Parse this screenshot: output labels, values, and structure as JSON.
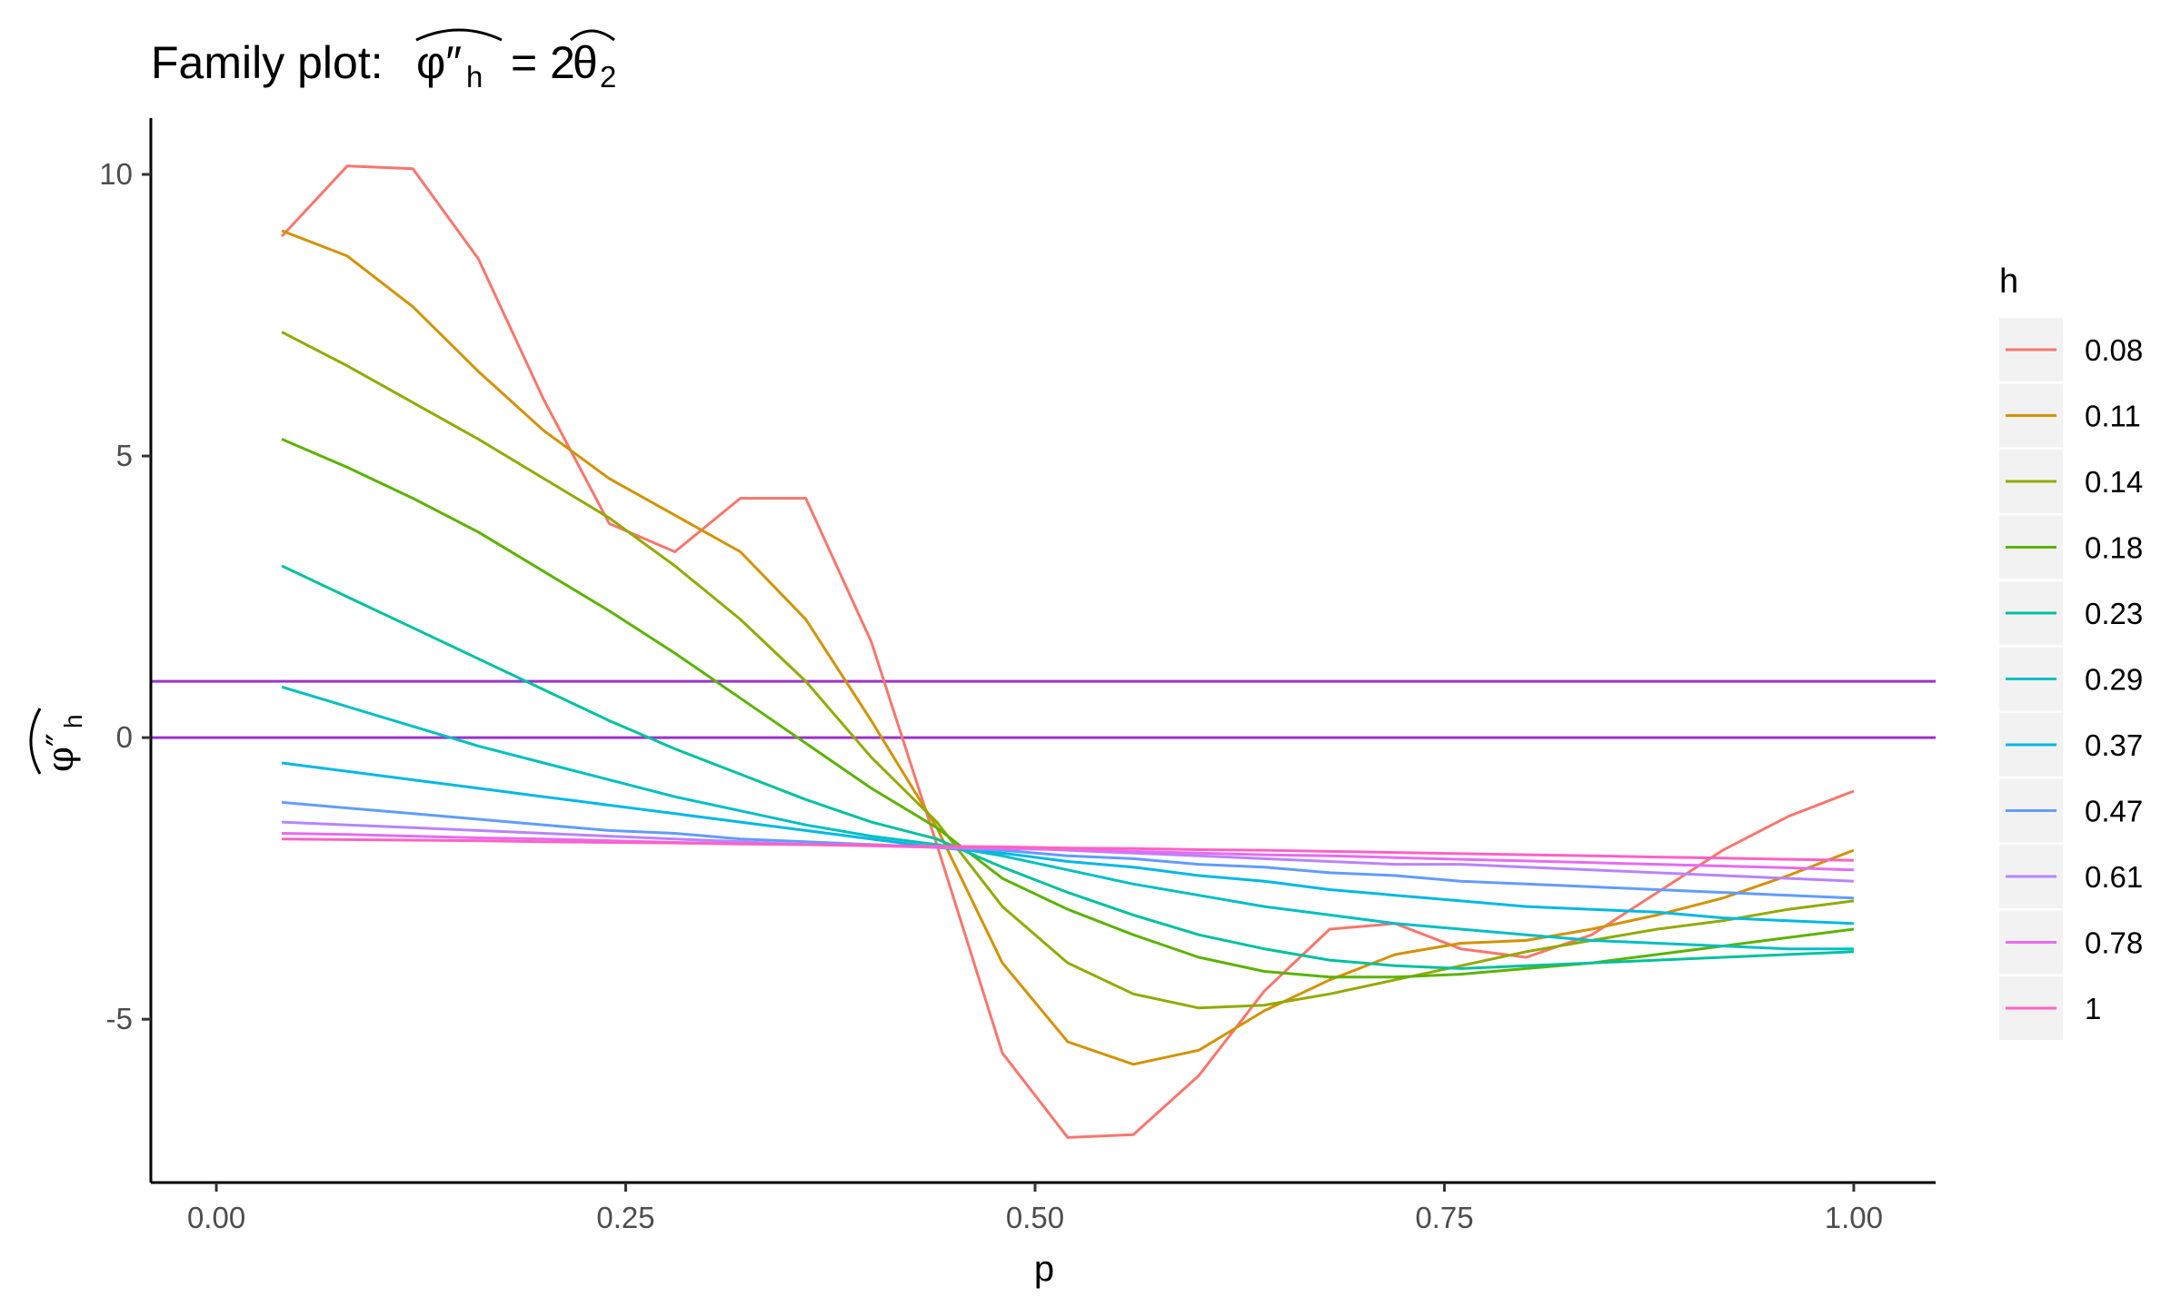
{
  "chart_data": {
    "type": "line",
    "title": "Family plot:",
    "xlabel": "p",
    "ylabel": "",
    "xlim": [
      -0.04,
      1.05
    ],
    "ylim": [
      -7.9,
      11.0
    ],
    "x_ticks": [
      0.0,
      0.25,
      0.5,
      0.75,
      1.0
    ],
    "x_tick_labels": [
      "0.00",
      "0.25",
      "0.50",
      "0.75",
      "1.00"
    ],
    "y_ticks": [
      -5,
      0,
      5,
      10
    ],
    "y_tick_labels": [
      "-5",
      "0",
      "5",
      "10"
    ],
    "grid": false,
    "legend": {
      "title": "h",
      "position": "right"
    },
    "x": [
      0.04,
      0.08,
      0.12,
      0.16,
      0.2,
      0.24,
      0.28,
      0.32,
      0.36,
      0.4,
      0.44,
      0.48,
      0.52,
      0.56,
      0.6,
      0.64,
      0.68,
      0.72,
      0.76,
      0.8,
      0.84,
      0.88,
      0.92,
      0.96,
      1.0
    ],
    "series": [
      {
        "name": "0.08",
        "color": "#F8766D",
        "values": [
          8.9,
          10.15,
          10.1,
          8.5,
          6.0,
          3.8,
          3.3,
          4.25,
          4.25,
          1.7,
          -1.9,
          -5.6,
          -7.1,
          -7.05,
          -6.0,
          -4.5,
          -3.4,
          -3.3,
          -3.75,
          -3.9,
          -3.5,
          -2.75,
          -2.0,
          -1.4,
          -0.95
        ]
      },
      {
        "name": "0.11",
        "color": "#D39200",
        "values": [
          9.0,
          8.55,
          7.65,
          6.5,
          5.45,
          4.6,
          3.95,
          3.3,
          2.1,
          0.3,
          -1.6,
          -4.0,
          -5.4,
          -5.8,
          -5.55,
          -4.85,
          -4.3,
          -3.85,
          -3.65,
          -3.6,
          -3.4,
          -3.15,
          -2.85,
          -2.45,
          -2.0
        ]
      },
      {
        "name": "0.14",
        "color": "#93AA00",
        "values": [
          7.2,
          6.6,
          5.95,
          5.3,
          4.6,
          3.9,
          3.05,
          2.1,
          1.0,
          -0.35,
          -1.5,
          -3.0,
          -4.0,
          -4.55,
          -4.8,
          -4.75,
          -4.55,
          -4.3,
          -4.05,
          -3.8,
          -3.6,
          -3.4,
          -3.25,
          -3.05,
          -2.9
        ]
      },
      {
        "name": "0.18",
        "color": "#5BB300",
        "values": [
          5.3,
          4.8,
          4.25,
          3.65,
          2.95,
          2.25,
          1.5,
          0.7,
          -0.1,
          -0.9,
          -1.6,
          -2.5,
          -3.05,
          -3.5,
          -3.9,
          -4.15,
          -4.25,
          -4.25,
          -4.2,
          -4.1,
          -4.0,
          -3.85,
          -3.7,
          -3.55,
          -3.4
        ]
      },
      {
        "name": "0.23",
        "color": "#00C19F",
        "values": [
          3.05,
          2.5,
          1.95,
          1.4,
          0.85,
          0.3,
          -0.2,
          -0.65,
          -1.1,
          -1.5,
          -1.8,
          -2.3,
          -2.75,
          -3.15,
          -3.5,
          -3.75,
          -3.95,
          -4.05,
          -4.1,
          -4.05,
          -4.0,
          -3.95,
          -3.9,
          -3.85,
          -3.8
        ]
      },
      {
        "name": "0.29",
        "color": "#00BFC4",
        "values": [
          0.9,
          0.55,
          0.2,
          -0.15,
          -0.45,
          -0.75,
          -1.05,
          -1.3,
          -1.55,
          -1.75,
          -1.9,
          -2.1,
          -2.35,
          -2.6,
          -2.8,
          -3.0,
          -3.15,
          -3.3,
          -3.4,
          -3.5,
          -3.6,
          -3.65,
          -3.7,
          -3.75,
          -3.75
        ]
      },
      {
        "name": "0.37",
        "color": "#00B9E3",
        "values": [
          -0.45,
          -0.6,
          -0.75,
          -0.9,
          -1.05,
          -1.2,
          -1.35,
          -1.5,
          -1.65,
          -1.8,
          -1.95,
          -2.05,
          -2.2,
          -2.3,
          -2.45,
          -2.55,
          -2.7,
          -2.8,
          -2.9,
          -3.0,
          -3.05,
          -3.1,
          -3.2,
          -3.25,
          -3.3
        ]
      },
      {
        "name": "0.47",
        "color": "#619CFF",
        "values": [
          -1.15,
          -1.25,
          -1.35,
          -1.45,
          -1.55,
          -1.65,
          -1.7,
          -1.8,
          -1.85,
          -1.9,
          -1.95,
          -2.0,
          -2.1,
          -2.15,
          -2.25,
          -2.3,
          -2.4,
          -2.45,
          -2.55,
          -2.6,
          -2.65,
          -2.7,
          -2.75,
          -2.8,
          -2.85
        ]
      },
      {
        "name": "0.61",
        "color": "#B983FF",
        "values": [
          -1.5,
          -1.55,
          -1.6,
          -1.65,
          -1.7,
          -1.75,
          -1.8,
          -1.85,
          -1.9,
          -1.9,
          -1.95,
          -1.95,
          -2.0,
          -2.05,
          -2.1,
          -2.15,
          -2.2,
          -2.25,
          -2.25,
          -2.3,
          -2.35,
          -2.4,
          -2.45,
          -2.5,
          -2.55
        ]
      },
      {
        "name": "0.78",
        "color": "#E76BF3",
        "values": [
          -1.7,
          -1.72,
          -1.75,
          -1.78,
          -1.8,
          -1.83,
          -1.86,
          -1.88,
          -1.9,
          -1.92,
          -1.95,
          -1.97,
          -1.99,
          -2.02,
          -2.05,
          -2.08,
          -2.1,
          -2.13,
          -2.16,
          -2.19,
          -2.22,
          -2.25,
          -2.28,
          -2.31,
          -2.35
        ]
      },
      {
        "name": "1",
        "color": "#FF61C3",
        "values": [
          -1.8,
          -1.81,
          -1.82,
          -1.83,
          -1.85,
          -1.86,
          -1.87,
          -1.89,
          -1.9,
          -1.91,
          -1.93,
          -1.94,
          -1.96,
          -1.97,
          -1.99,
          -2.0,
          -2.02,
          -2.04,
          -2.06,
          -2.08,
          -2.1,
          -2.12,
          -2.14,
          -2.16,
          -2.18
        ]
      }
    ],
    "hlines": [
      {
        "y": 1,
        "color": "#9A32CD"
      },
      {
        "y": 0,
        "color": "#9A32CD"
      }
    ]
  }
}
